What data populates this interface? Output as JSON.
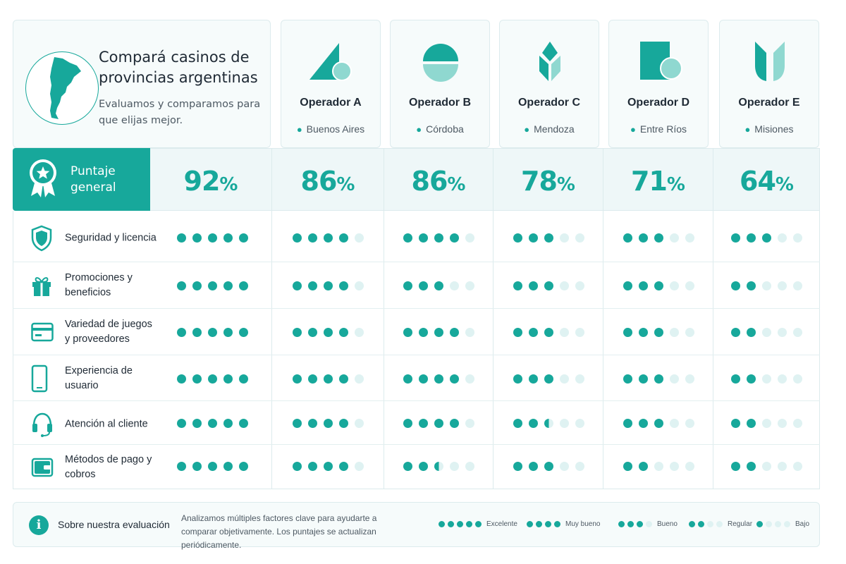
{
  "intro": {
    "title": "Compará casinos de provincias argentinas",
    "subtitle": "Evaluamos y comparamos para que elijas mejor."
  },
  "operators": [
    {
      "name": "Operador A",
      "location": "Buenos Aires",
      "score": "92",
      "logo": "triangle-circle-logo"
    },
    {
      "name": "Operador B",
      "location": "Córdoba",
      "score": "86",
      "logo": "half-circles-logo"
    },
    {
      "name": "Operador C",
      "location": "Mendoza",
      "score": "86",
      "logo": "diamond-leaf-logo"
    },
    {
      "name": "Operador D",
      "location": "Entre Ríos",
      "score": "78",
      "logo": "square-circle-logo"
    },
    {
      "name": "Operador E",
      "location": "Misiones",
      "score": "71",
      "logo": "tulip-logo"
    },
    {
      "name": "",
      "location": "",
      "score": "64",
      "logo": ""
    }
  ],
  "score_row": {
    "label": "Puntaje general",
    "percent_sign": "%"
  },
  "criteria": [
    {
      "label": "Seguridad y licencia",
      "icon": "shield-icon",
      "ratings": [
        5,
        4,
        4,
        3,
        3,
        3
      ]
    },
    {
      "label": "Promociones y beneficios",
      "icon": "gift-icon",
      "ratings": [
        5,
        4,
        3,
        3,
        3,
        2
      ]
    },
    {
      "label": "Variedad de juegos y proveedores",
      "icon": "card-icon",
      "ratings": [
        5,
        4,
        4,
        3,
        3,
        2
      ]
    },
    {
      "label": "Experiencia de usuario",
      "icon": "phone-icon",
      "ratings": [
        5,
        4,
        4,
        3,
        3,
        2
      ]
    },
    {
      "label": "Atención al cliente",
      "icon": "headset-icon",
      "ratings": [
        5,
        4,
        4,
        2.5,
        3,
        2
      ]
    },
    {
      "label": "Métodos de pago y cobros",
      "icon": "wallet-icon",
      "ratings": [
        5,
        4,
        2.5,
        3,
        2,
        2
      ]
    }
  ],
  "footer": {
    "title": "Sobre nuestra evaluación",
    "text": "Analizamos múltiples factores clave para ayudarte a comparar objetivamente. Los puntajes se actualizan periódicamente.",
    "legend": [
      {
        "label": "Excelente",
        "dots": 5
      },
      {
        "label": "Muy bueno",
        "dots": 4
      },
      {
        "label": "Bueno",
        "dots": 3
      },
      {
        "label": "Regular",
        "dots": 2
      },
      {
        "label": "Bajo",
        "dots": 1
      }
    ]
  },
  "colors": {
    "accent": "#17a89b",
    "light": "#dff2f2",
    "band": "#eef7f8"
  }
}
